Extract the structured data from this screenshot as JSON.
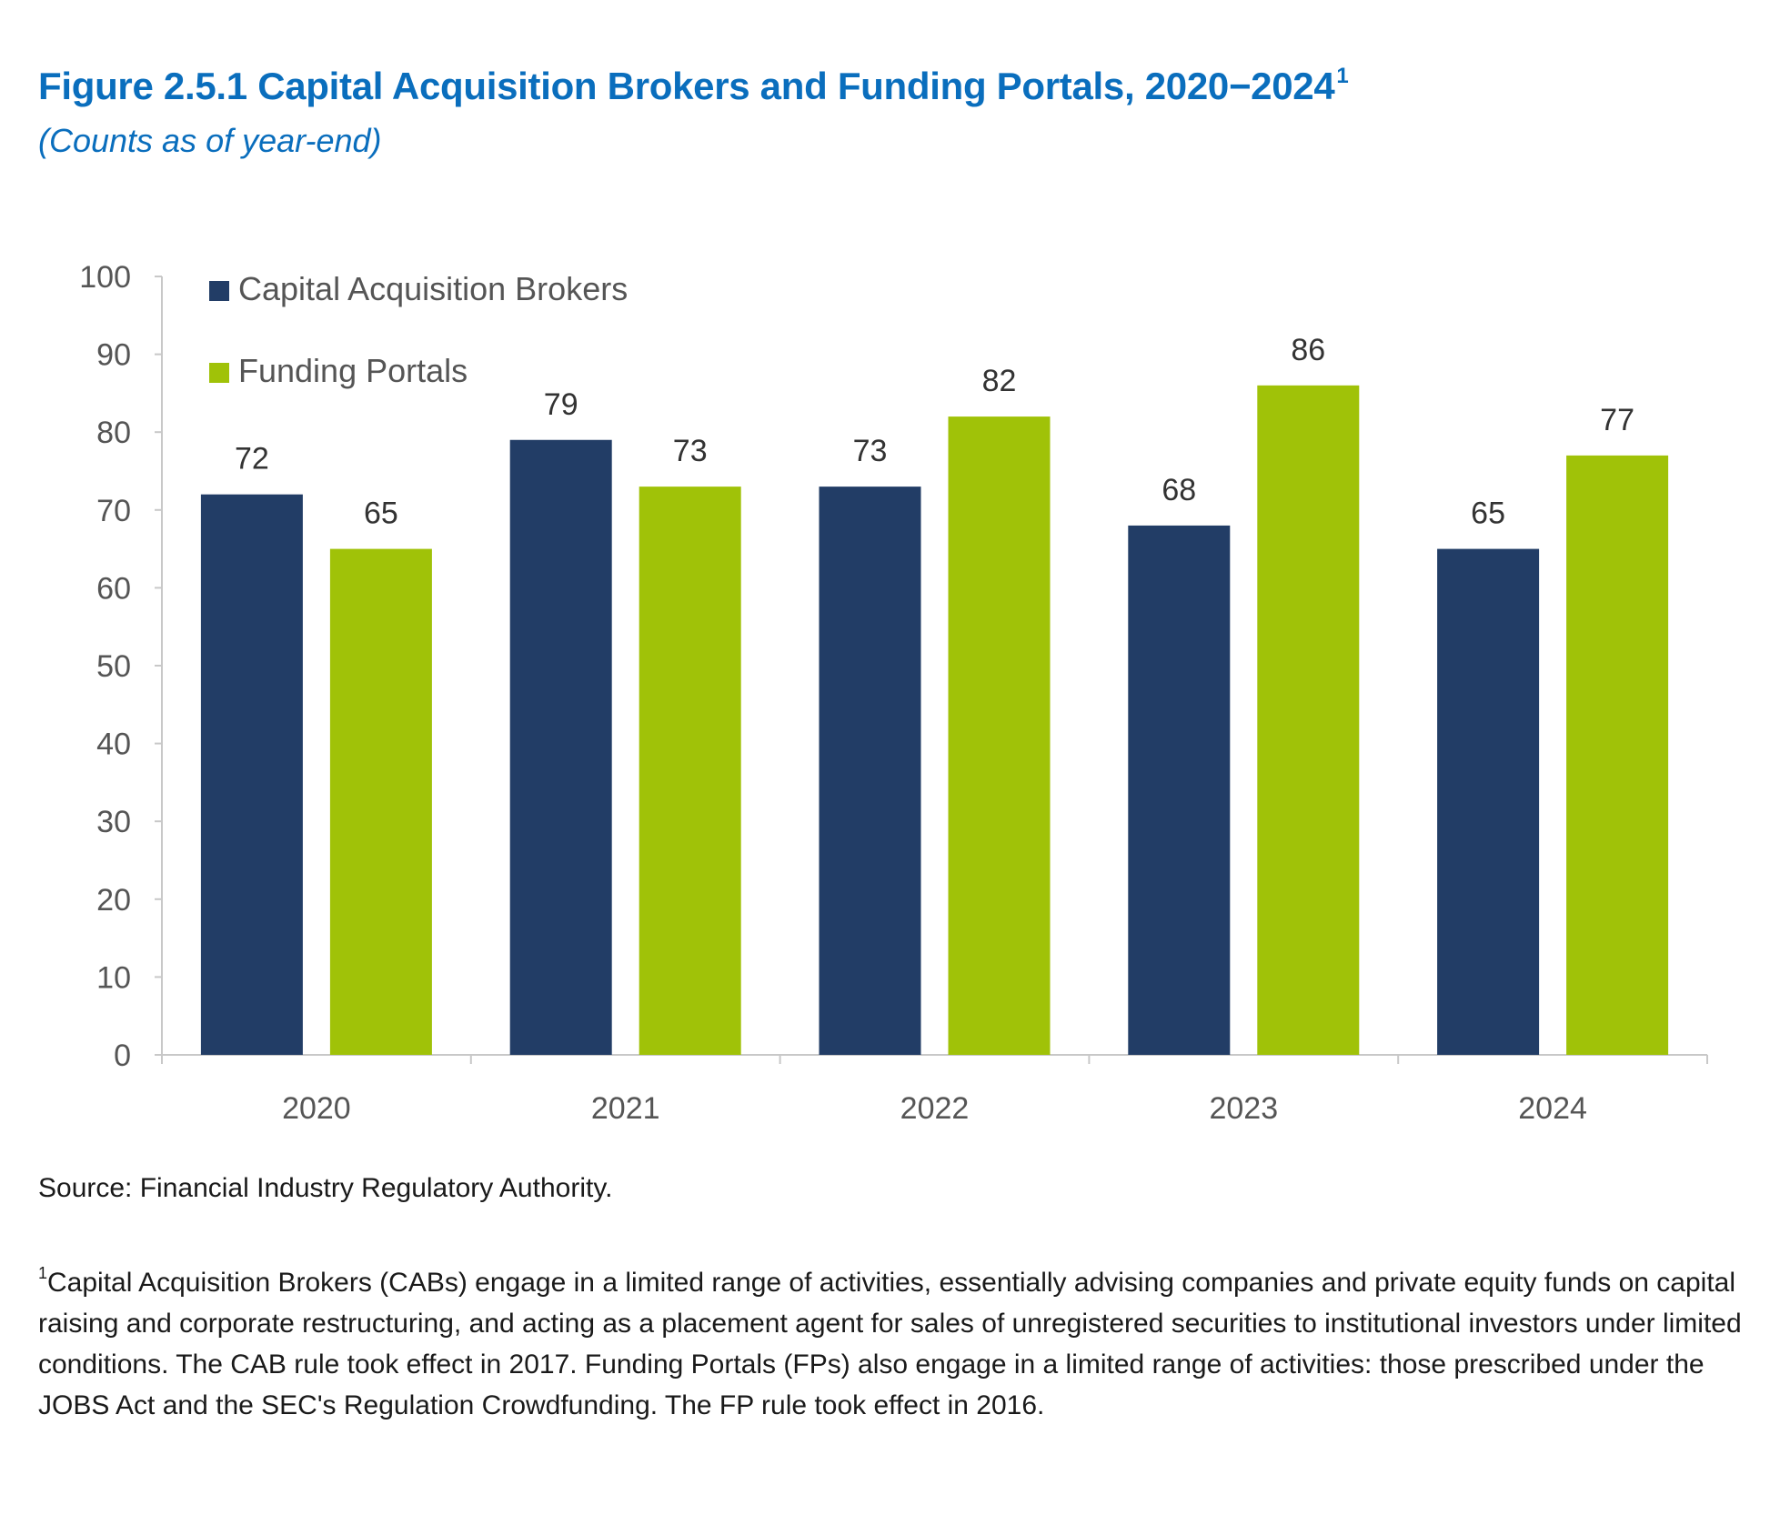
{
  "header": {
    "title": "Figure 2.5.1 Capital Acquisition Brokers and Funding Portals, 2020−2024",
    "title_footnote_marker": "1",
    "subtitle": "(Counts as of year-end)"
  },
  "chart_data": {
    "type": "bar",
    "categories": [
      "2020",
      "2021",
      "2022",
      "2023",
      "2024"
    ],
    "series": [
      {
        "name": "Capital Acquisition Brokers",
        "color": "#223d66",
        "values": [
          72,
          79,
          73,
          68,
          65
        ]
      },
      {
        "name": "Funding Portals",
        "color": "#a0c208",
        "values": [
          65,
          73,
          82,
          86,
          77
        ]
      }
    ],
    "yticks": [
      0,
      10,
      20,
      30,
      40,
      50,
      60,
      70,
      80,
      90,
      100
    ],
    "ylim": [
      0,
      100
    ],
    "xlabel": "",
    "ylabel": "",
    "legend_position": "top-left",
    "grid": false,
    "data_labels": true
  },
  "notes": {
    "source": "Source: Financial Industry Regulatory Authority.",
    "footnote_marker": "1",
    "footnote": "Capital Acquisition Brokers (CABs) engage in a limited range of activities, essentially advising companies and private equity funds on capital raising and corporate restructuring, and acting as a placement agent for sales of unregistered securities to institutional investors under limited conditions. The CAB rule took effect in 2017. Funding Portals (FPs) also engage in a limited range of activities: those prescribed under the JOBS Act and the SEC's Regulation Crowdfunding. The FP rule took effect in 2016."
  },
  "colors": {
    "title": "#0a6ebd",
    "axis": "#c8c8c8",
    "tick_text": "#555555",
    "label_text": "#333333"
  }
}
